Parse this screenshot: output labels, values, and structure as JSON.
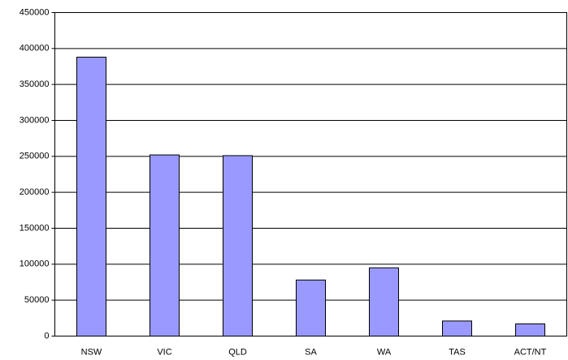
{
  "chart_data": {
    "type": "bar",
    "categories": [
      "NSW",
      "VIC",
      "QLD",
      "SA",
      "WA",
      "TAS",
      "ACT/NT"
    ],
    "values": [
      388000,
      252000,
      251000,
      78000,
      95000,
      21000,
      17000
    ],
    "color": "#9999ff",
    "ylim": [
      0,
      450000
    ],
    "yticks": [
      0,
      50000,
      100000,
      150000,
      200000,
      250000,
      300000,
      350000,
      400000,
      450000
    ],
    "grid": true
  }
}
